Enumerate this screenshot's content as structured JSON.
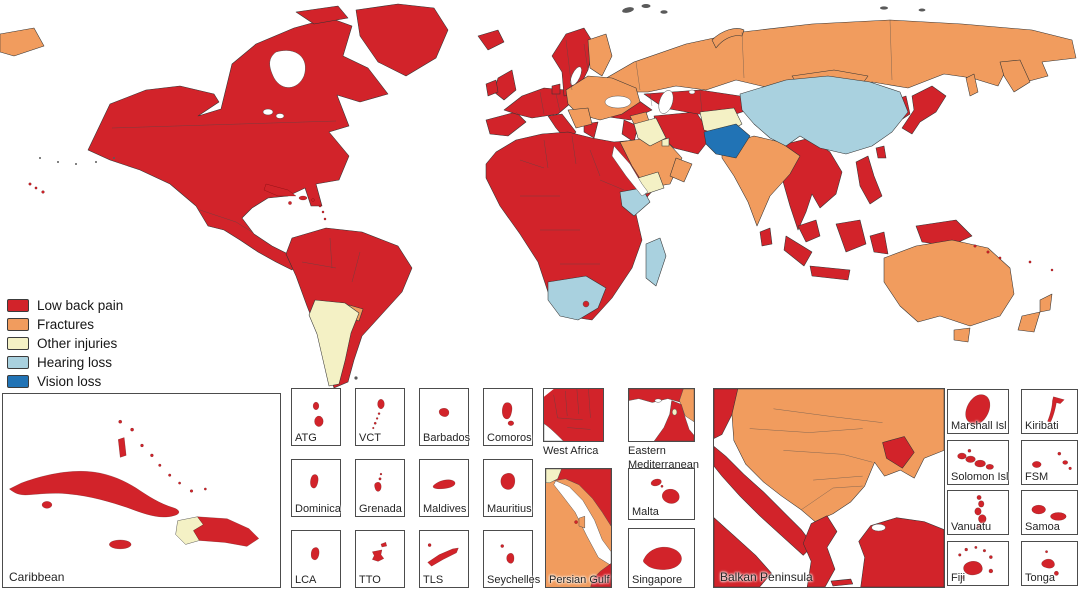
{
  "legend": {
    "items": [
      {
        "key": "low_back_pain",
        "label": "Low back pain",
        "color": "#d2232a"
      },
      {
        "key": "fractures",
        "label": "Fractures",
        "color": "#f19c5e"
      },
      {
        "key": "other_injuries",
        "label": "Other injuries",
        "color": "#f4f1c5"
      },
      {
        "key": "hearing_loss",
        "label": "Hearing loss",
        "color": "#a9d1df"
      },
      {
        "key": "vision_loss",
        "label": "Vision loss",
        "color": "#2173b5"
      }
    ]
  },
  "map": {
    "type": "choropleth-world-map",
    "category_by_region": {
      "low_back_pain": [
        "Canada",
        "United States",
        "Mexico",
        "Central America",
        "Greenland",
        "Iceland",
        "Brazil",
        "Chile",
        "Andean and tropical South America",
        "Cuba",
        "Dominican Republic",
        "Jamaica",
        "Western Europe",
        "United Kingdom",
        "Ireland",
        "Norway",
        "Sweden",
        "Turkey",
        "Iran",
        "Kazakhstan and Central Asia",
        "North Africa",
        "West and Central Africa",
        "Egypt",
        "Horn of Africa",
        "Lesotho",
        "Myanmar",
        "Thailand and Indochina",
        "Indonesia",
        "Philippines",
        "Japan",
        "Korea",
        "Taiwan",
        "Sri Lanka",
        "Papua New Guinea"
      ],
      "fractures": [
        "Russia",
        "Eastern Europe",
        "Poland",
        "Ukraine",
        "Baltic states",
        "Finland",
        "Balkans",
        "Mongolia",
        "India",
        "Nepal",
        "Bangladesh",
        "Syria",
        "Saudi Arabia",
        "UAE and Oman",
        "Uruguay",
        "Australia",
        "New Zealand"
      ],
      "other_injuries": [
        "Argentina",
        "Haiti",
        "Iraq",
        "Kuwait",
        "Yemen",
        "Afghanistan"
      ],
      "hearing_loss": [
        "China",
        "Kenya",
        "South Africa",
        "Madagascar"
      ],
      "vision_loss": [
        "Pakistan"
      ]
    }
  },
  "insets": {
    "caribbean": {
      "label": "Caribbean"
    },
    "small_islands": [
      "ATG",
      "VCT",
      "Barbados",
      "Comoros",
      "Dominica",
      "Grenada",
      "Maldives",
      "Mauritius",
      "LCA",
      "TTO",
      "TLS",
      "Seychelles"
    ],
    "west_africa": {
      "label": "West Africa"
    },
    "eastern_mediterranean": {
      "label": "Eastern Mediterranean"
    },
    "persian_gulf": {
      "label": "Persian Gulf"
    },
    "malta": {
      "label": "Malta"
    },
    "singapore": {
      "label": "Singapore"
    },
    "balkan_peninsula": {
      "label": "Balkan Peninsula"
    },
    "pacific_islands": [
      "Marshall Isl",
      "Kiribati",
      "Solomon Isl",
      "FSM",
      "Vanuatu",
      "Samoa",
      "Fiji",
      "Tonga"
    ]
  }
}
